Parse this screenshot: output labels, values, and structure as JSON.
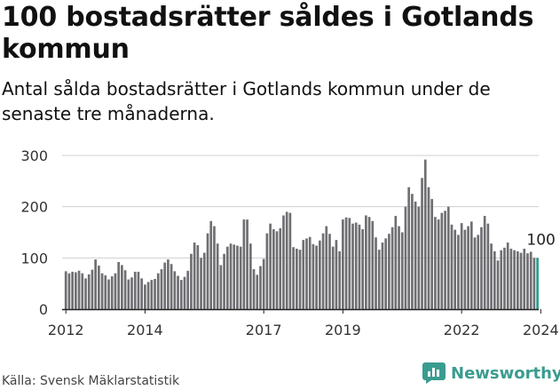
{
  "title": "100 bostadsrätter såldes i Gotlands kommun",
  "subtitle": "Antal sålda bostadsrätter i Gotlands kommun under de senaste tre månaderna.",
  "source": "Källa: Svensk Mäklarstatistik",
  "logo_text": "Newsworthy",
  "colors": {
    "bar": "#6f6f73",
    "highlight": "#2c9c8f",
    "grid": "#d0d0d0",
    "axis": "#222222",
    "brand": "#3a9c8f"
  },
  "chart_data": {
    "type": "bar",
    "x_start": "2012-01",
    "frequency": "monthly",
    "ylim": [
      0,
      300
    ],
    "yticks": [
      0,
      100,
      200,
      300
    ],
    "xticks": [
      "2012",
      "2014",
      "2017",
      "2019",
      "2022",
      "2024"
    ],
    "highlight_label": "100",
    "values": [
      74,
      70,
      73,
      72,
      75,
      70,
      60,
      68,
      77,
      97,
      85,
      70,
      66,
      58,
      64,
      70,
      92,
      86,
      76,
      58,
      62,
      73,
      73,
      60,
      48,
      53,
      57,
      59,
      70,
      78,
      91,
      97,
      88,
      74,
      65,
      57,
      63,
      75,
      108,
      130,
      125,
      100,
      110,
      148,
      172,
      162,
      128,
      86,
      108,
      122,
      128,
      126,
      124,
      122,
      175,
      175,
      128,
      78,
      67,
      84,
      98,
      148,
      167,
      156,
      152,
      158,
      183,
      190,
      188,
      121,
      118,
      116,
      135,
      138,
      141,
      127,
      124,
      134,
      148,
      162,
      147,
      122,
      135,
      113,
      175,
      179,
      178,
      167,
      169,
      165,
      156,
      183,
      180,
      172,
      140,
      116,
      130,
      138,
      147,
      160,
      182,
      162,
      150,
      200,
      238,
      225,
      210,
      200,
      256,
      292,
      238,
      215,
      180,
      175,
      188,
      192,
      200,
      165,
      155,
      145,
      168,
      155,
      162,
      171,
      140,
      145,
      160,
      182,
      167,
      128,
      113,
      95,
      115,
      120,
      130,
      118,
      115,
      113,
      110,
      118,
      109,
      112,
      100,
      100
    ]
  }
}
